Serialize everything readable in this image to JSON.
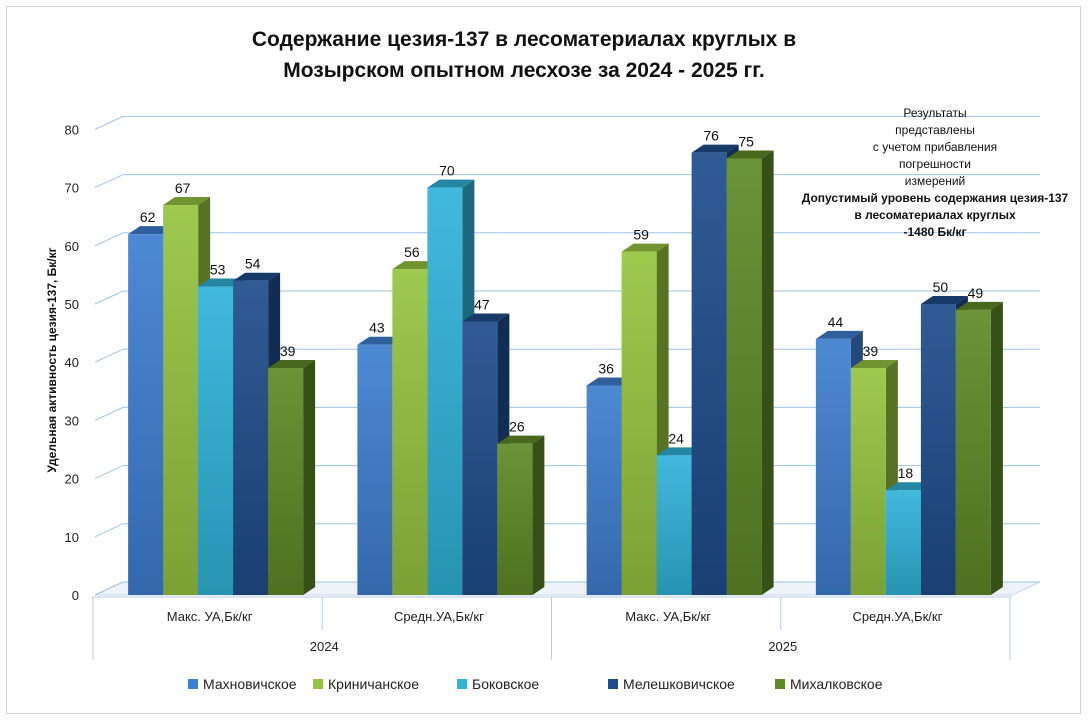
{
  "chart_data": {
    "type": "bar",
    "title_lines": [
      "Содержание цезия-137 в лесоматериалах круглых в",
      "Мозырском опытном лесхозе за 2024 - 2025  гг."
    ],
    "ylabel": "Удельная активность цезия-137, Бк/кг",
    "ylim": [
      0,
      80
    ],
    "yticks": [
      0,
      10,
      20,
      30,
      40,
      50,
      60,
      70,
      80
    ],
    "categories": [
      {
        "label": "Макс. УА,Бк/кг",
        "group": "2024"
      },
      {
        "label": "Средн.УА,Бк/кг",
        "group": "2024"
      },
      {
        "label": "Макс. УА,Бк/кг",
        "group": "2025"
      },
      {
        "label": "Средн.УА,Бк/кг",
        "group": "2025"
      }
    ],
    "groups": [
      "2024",
      "2025"
    ],
    "series": [
      {
        "name": "Махновичское",
        "color": "#3f7fd0",
        "values": [
          62,
          43,
          36,
          44
        ]
      },
      {
        "name": "Криничанское",
        "color": "#96c440",
        "values": [
          67,
          56,
          59,
          39
        ]
      },
      {
        "name": "Боковское",
        "color": "#31b3da",
        "values": [
          53,
          70,
          24,
          18
        ]
      },
      {
        "name": "Мелешковичское",
        "color": "#1f4d8c",
        "values": [
          54,
          47,
          76,
          50
        ]
      },
      {
        "name": "Михалковское",
        "color": "#5e8a27",
        "values": [
          39,
          26,
          75,
          49
        ]
      }
    ],
    "annotation": {
      "lines": [
        "Результаты",
        "представлены",
        "с учетом прибавления",
        "погрешности",
        "измерений"
      ],
      "bold_lines": [
        "Допустимый уровень содержания цезия-137",
        "в лесоматериалах круглых",
        "-1480 Бк/кг"
      ]
    },
    "legend_position": "bottom",
    "grid": true
  }
}
